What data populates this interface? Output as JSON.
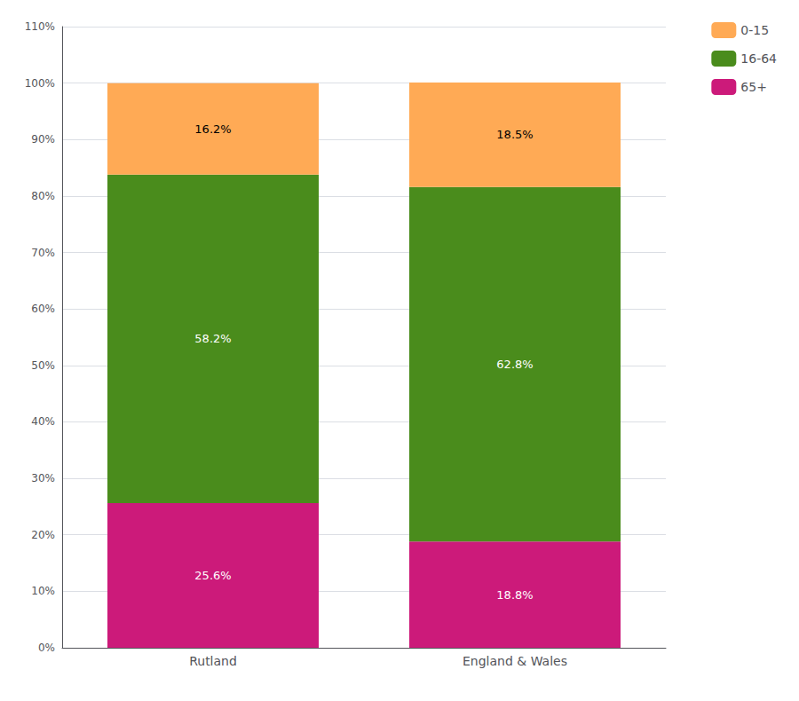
{
  "chart_data": {
    "type": "bar",
    "stacked": true,
    "data_labels": true,
    "grid": true,
    "legend": "upper right",
    "categories": [
      "Rutland",
      "England & Wales"
    ],
    "series": [
      {
        "name": "65+",
        "color": "#CC1A7A",
        "values": [
          25.6,
          18.8
        ],
        "value_labels": [
          "25.6%",
          "18.8%"
        ]
      },
      {
        "name": "16-64",
        "color": "#4A8C1C",
        "values": [
          58.2,
          62.8
        ],
        "value_labels": [
          "58.2%",
          "62.8%"
        ]
      },
      {
        "name": "0-15",
        "color": "#FFAA55",
        "values": [
          16.2,
          18.5
        ],
        "value_labels": [
          "16.2%",
          "18.5%"
        ]
      }
    ],
    "ylim": [
      0,
      110
    ],
    "yticks": [
      {
        "value": 0,
        "label": "0%"
      },
      {
        "value": 10,
        "label": "10%"
      },
      {
        "value": 20,
        "label": "20%"
      },
      {
        "value": 30,
        "label": "30%"
      },
      {
        "value": 40,
        "label": "40%"
      },
      {
        "value": 50,
        "label": "50%"
      },
      {
        "value": 60,
        "label": "60%"
      },
      {
        "value": 70,
        "label": "70%"
      },
      {
        "value": 80,
        "label": "80%"
      },
      {
        "value": 90,
        "label": "90%"
      },
      {
        "value": 100,
        "label": "100%"
      },
      {
        "value": 110,
        "label": "110%"
      }
    ]
  }
}
